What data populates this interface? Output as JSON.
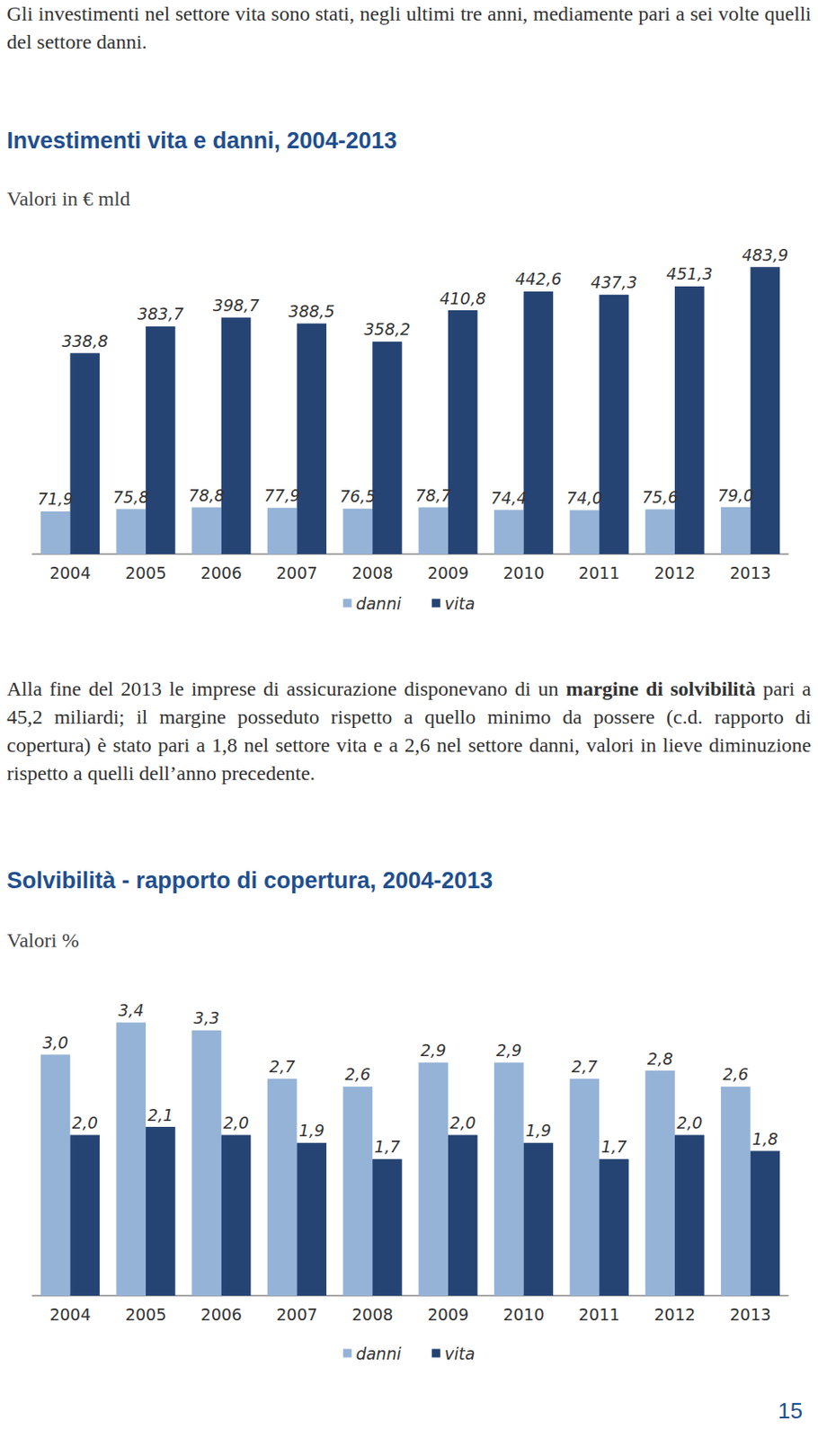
{
  "paragraphs": [
    {
      "text": "Gli investimenti nel settore vita sono stati, negli ultimi tre anni, mediamente pari a sei volte quelli del settore danni."
    },
    {
      "text": "Alla fine del 2013 le imprese di assicurazione disponevano di un margine di solvibilità pari a 45,2 miliardi; il margine posseduto rispetto a quello minimo da possere (c.d. rapporto di copertura) è stato pari a 1,8 nel settore vita e a 2,6 nel settore danni, valori in lieve diminuzione rispetto a quelli dell’anno precedente.",
      "bold": "margine di solvibilità"
    }
  ],
  "chart_data": [
    {
      "type": "bar",
      "title": "Investimenti vita e danni, 2004-2013",
      "subtitle": "Valori in € mld",
      "categories": [
        "2004",
        "2005",
        "2006",
        "2007",
        "2008",
        "2009",
        "2010",
        "2011",
        "2012",
        "2013"
      ],
      "series": [
        {
          "name": "danni",
          "color": "#95b3d7",
          "values": [
            71.9,
            75.8,
            78.8,
            77.9,
            76.5,
            78.7,
            74.4,
            74.0,
            75.6,
            79.0
          ],
          "value_labels": [
            "71,9",
            "75,8",
            "78,8",
            "77,9",
            "76,5",
            "78,7",
            "74,4",
            "74,0",
            "75,6",
            "79,0"
          ]
        },
        {
          "name": "vita",
          "color": "#254474",
          "values": [
            338.8,
            383.7,
            398.7,
            388.5,
            358.2,
            410.8,
            442.6,
            437.3,
            451.3,
            483.9
          ],
          "value_labels": [
            "338,8",
            "383,7",
            "398,7",
            "388,5",
            "358,2",
            "410,8",
            "442,6",
            "437,3",
            "451,3",
            "483,9"
          ]
        }
      ],
      "ylim": [
        0,
        500
      ],
      "grid": false,
      "legend": "bottom",
      "data_labels": true,
      "tick_labels": "x"
    },
    {
      "type": "bar",
      "title": "Solvibilità - rapporto di copertura, 2004-2013",
      "subtitle": "Valori %",
      "categories": [
        "2004",
        "2005",
        "2006",
        "2007",
        "2008",
        "2009",
        "2010",
        "2011",
        "2012",
        "2013"
      ],
      "series": [
        {
          "name": "danni",
          "color": "#95b3d7",
          "values": [
            3.0,
            3.4,
            3.3,
            2.7,
            2.6,
            2.9,
            2.9,
            2.7,
            2.8,
            2.6
          ],
          "value_labels": [
            "3,0",
            "3,4",
            "3,3",
            "2,7",
            "2,6",
            "2,9",
            "2,9",
            "2,7",
            "2,8",
            "2,6"
          ]
        },
        {
          "name": "vita",
          "color": "#254474",
          "values": [
            2.0,
            2.1,
            2.0,
            1.9,
            1.7,
            2.0,
            1.9,
            1.7,
            2.0,
            1.8
          ],
          "value_labels": [
            "2,0",
            "2,1",
            "2,0",
            "1,9",
            "1,7",
            "2,0",
            "1,9",
            "1,7",
            "2,0",
            "1,8"
          ]
        }
      ],
      "ylim": [
        0,
        3.5
      ],
      "grid": false,
      "legend": "bottom",
      "data_labels": true,
      "tick_labels": "x"
    }
  ],
  "page_number": "15"
}
